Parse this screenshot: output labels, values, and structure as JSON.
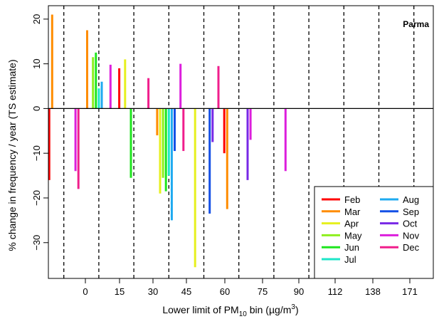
{
  "chart_data": {
    "type": "bar",
    "label": "Parma",
    "xlabel": {
      "pre": "Lower limit of PM",
      "sub": "10",
      "mid": " bin (",
      "mu": "µ",
      "unit": "g/m",
      "sup": "3",
      "post": ")"
    },
    "ylabel": "% change in frequency / year (TS estimate)",
    "ylim": [
      -38,
      23
    ],
    "y_ticks": [
      -30,
      -20,
      -10,
      0,
      10,
      20
    ],
    "bins": [
      "0",
      "15",
      "30",
      "45",
      "60",
      "75",
      "90",
      "112",
      "138",
      "171"
    ],
    "intermediate_labels": [
      "0",
      "15",
      "30",
      "45",
      "60",
      "75",
      "90",
      "112",
      "138",
      "171"
    ],
    "bin_index_offset": -1,
    "month_colors": {
      "Feb": "#ff0000",
      "Mar": "#ff8c00",
      "Apr": "#e6f01e",
      "May": "#8ef01e",
      "Jun": "#1ee61e",
      "Jul": "#1ee6c8",
      "Aug": "#1eaaf0",
      "Sep": "#1450e6",
      "Oct": "#7828e6",
      "Nov": "#dc1edc",
      "Dec": "#f01e8c"
    },
    "legend": [
      "Feb",
      "Mar",
      "Apr",
      "May",
      "Jun",
      "Jul",
      "Aug",
      "Sep",
      "Oct",
      "Nov",
      "Dec"
    ],
    "legend_position": "bottom-right",
    "series": [
      {
        "month": "Feb",
        "bin": 0,
        "value": -16
      },
      {
        "month": "Mar",
        "bin": 0,
        "value": 21
      },
      {
        "month": "Nov",
        "bin": 0,
        "value": -14
      },
      {
        "month": "Dec",
        "bin": 0,
        "value": -18
      },
      {
        "month": "Mar",
        "bin": 1,
        "value": 17.5
      },
      {
        "month": "May",
        "bin": 1,
        "value": 11.5
      },
      {
        "month": "Jun",
        "bin": 1,
        "value": 12.5
      },
      {
        "month": "Jul",
        "bin": 1,
        "value": 4.5
      },
      {
        "month": "Aug",
        "bin": 1,
        "value": 6
      },
      {
        "month": "Nov",
        "bin": 1,
        "value": 9.8
      },
      {
        "month": "Feb",
        "bin": 2,
        "value": 9
      },
      {
        "month": "Apr",
        "bin": 2,
        "value": 11
      },
      {
        "month": "Jun",
        "bin": 2,
        "value": -15.5
      },
      {
        "month": "Dec",
        "bin": 2,
        "value": 6.8
      },
      {
        "month": "Mar",
        "bin": 3,
        "value": -6
      },
      {
        "month": "Apr",
        "bin": 3,
        "value": -19
      },
      {
        "month": "May",
        "bin": 3,
        "value": -15.5
      },
      {
        "month": "Jun",
        "bin": 3,
        "value": -18.5
      },
      {
        "month": "Jul",
        "bin": 3,
        "value": -15
      },
      {
        "month": "Aug",
        "bin": 3,
        "value": -25
      },
      {
        "month": "Sep",
        "bin": 3,
        "value": -9.5
      },
      {
        "month": "Nov",
        "bin": 3,
        "value": 10
      },
      {
        "month": "Dec",
        "bin": 3,
        "value": -9.5
      },
      {
        "month": "Apr",
        "bin": 4,
        "value": -35.5
      },
      {
        "month": "Sep",
        "bin": 4,
        "value": -23.5
      },
      {
        "month": "Oct",
        "bin": 4,
        "value": -7.5
      },
      {
        "month": "Dec",
        "bin": 4,
        "value": 9.5
      },
      {
        "month": "Mar",
        "bin": 5,
        "value": -22.5
      },
      {
        "month": "Oct",
        "bin": 5,
        "value": -16
      },
      {
        "month": "Nov",
        "bin": 5,
        "value": -7
      },
      {
        "month": "Feb",
        "bin": 5,
        "value": -10
      },
      {
        "month": "Nov",
        "bin": 6,
        "value": -14
      }
    ]
  }
}
